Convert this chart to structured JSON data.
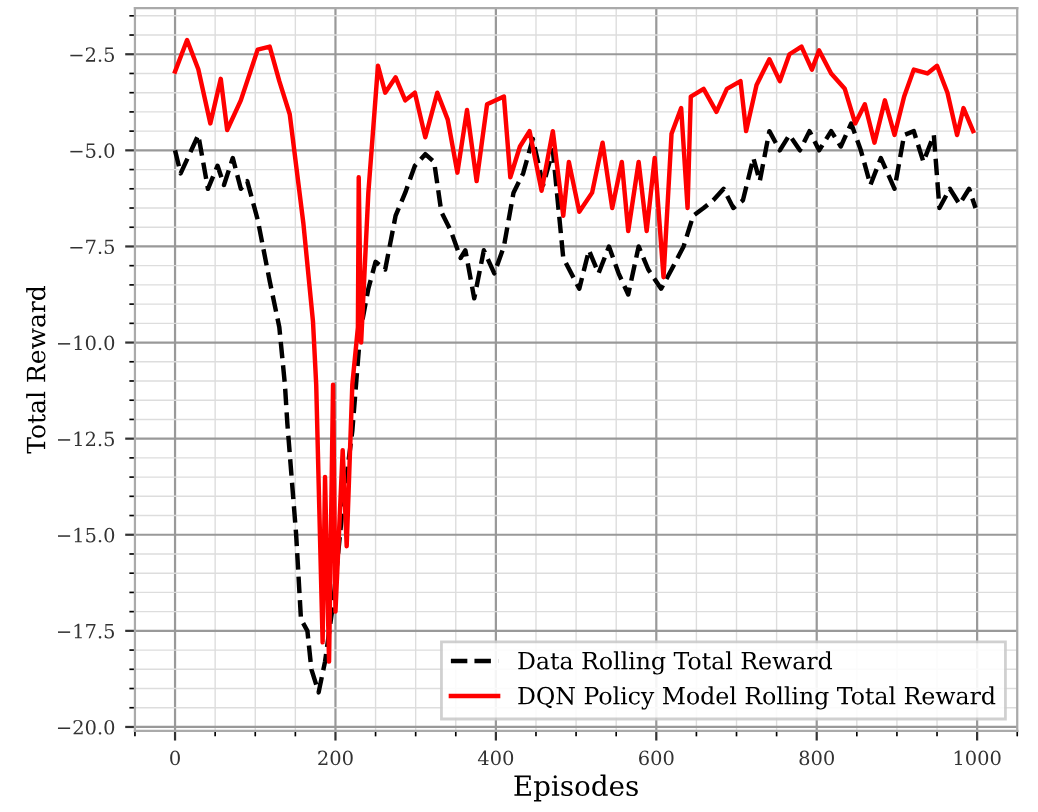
{
  "chart_data": {
    "type": "line",
    "xlabel": "Episodes",
    "ylabel": "Total Reward",
    "xlim": [
      -50,
      1050
    ],
    "ylim": [
      -20.1,
      -1.3
    ],
    "xticks": [
      0,
      200,
      400,
      600,
      800,
      1000
    ],
    "yticks": [
      {
        "value": -20,
        "label": "−20.0"
      },
      {
        "value": -17.5,
        "label": "−17.5"
      },
      {
        "value": -15,
        "label": "−15.0"
      },
      {
        "value": -12.5,
        "label": "−12.5"
      },
      {
        "value": -10,
        "label": "−10.0"
      },
      {
        "value": -7.5,
        "label": "−7.5"
      },
      {
        "value": -5,
        "label": "−5.0"
      },
      {
        "value": -2.5,
        "label": "−2.5"
      }
    ],
    "grid": true,
    "legend": "bottom right",
    "marker": "none",
    "series": [
      {
        "name": "Data Rolling Total Reward",
        "color": "#000000",
        "line_style": "dashed",
        "x": [
          0,
          7,
          29,
          41,
          53,
          61,
          72,
          82,
          90,
          103,
          118,
          130,
          137,
          140,
          151,
          157,
          165,
          170,
          179,
          187,
          197,
          209,
          221,
          231,
          241,
          250,
          262,
          275,
          287,
          299,
          312,
          323,
          332,
          344,
          356,
          362,
          373,
          385,
          398,
          410,
          422,
          434,
          446,
          459,
          471,
          484,
          504,
          516,
          528,
          541,
          553,
          565,
          578,
          590,
          606,
          619,
          634,
          646,
          659,
          671,
          684,
          696,
          708,
          721,
          729,
          741,
          754,
          766,
          779,
          791,
          803,
          818,
          830,
          843,
          855,
          867,
          880,
          897,
          909,
          921,
          933,
          946,
          953,
          966,
          978,
          990,
          998
        ],
        "values": [
          -5.0,
          -5.6,
          -4.6,
          -6.0,
          -5.4,
          -5.9,
          -5.2,
          -6.0,
          -5.8,
          -6.8,
          -8.4,
          -9.6,
          -11.1,
          -12.1,
          -15.0,
          -17.2,
          -17.5,
          -18.5,
          -19.1,
          -18.3,
          -16.8,
          -14.3,
          -12.3,
          -9.7,
          -8.6,
          -7.9,
          -8.1,
          -6.7,
          -6.1,
          -5.4,
          -5.1,
          -5.3,
          -6.6,
          -7.1,
          -7.8,
          -7.6,
          -8.85,
          -7.6,
          -8.2,
          -7.5,
          -6.1,
          -5.6,
          -4.7,
          -5.9,
          -5.0,
          -7.8,
          -8.6,
          -7.6,
          -8.2,
          -7.5,
          -8.2,
          -8.75,
          -7.5,
          -8.1,
          -8.6,
          -8.1,
          -7.5,
          -6.7,
          -6.5,
          -6.3,
          -6.0,
          -6.5,
          -6.3,
          -5.2,
          -5.8,
          -4.5,
          -5.0,
          -4.6,
          -5.0,
          -4.5,
          -5.0,
          -4.5,
          -4.9,
          -4.3,
          -5.0,
          -5.9,
          -5.2,
          -6.0,
          -4.6,
          -4.5,
          -5.3,
          -4.6,
          -6.5,
          -6.0,
          -6.4,
          -6.0,
          -6.5
        ]
      },
      {
        "name": "DQN Policy Model Rolling Total Reward",
        "color": "#ff0000",
        "line_style": "solid",
        "x": [
          0,
          15,
          29,
          44,
          57,
          65,
          82,
          103,
          118,
          130,
          143,
          160,
          172,
          176,
          184,
          187,
          192,
          197,
          200,
          209,
          214,
          221,
          228,
          229,
          232,
          241,
          253,
          262,
          275,
          287,
          299,
          312,
          327,
          340,
          352,
          364,
          376,
          389,
          410,
          418,
          430,
          442,
          457,
          471,
          484,
          491,
          504,
          520,
          533,
          545,
          557,
          565,
          578,
          588,
          598,
          609,
          619,
          631,
          639,
          643,
          659,
          675,
          688,
          705,
          712,
          725,
          741,
          754,
          766,
          781,
          794,
          803,
          818,
          835,
          848,
          860,
          872,
          885,
          897,
          909,
          921,
          938,
          950,
          963,
          975,
          983,
          995
        ],
        "values": [
          -2.95,
          -2.13,
          -2.89,
          -4.3,
          -3.14,
          -4.47,
          -3.7,
          -2.38,
          -2.3,
          -3.2,
          -4.06,
          -6.9,
          -9.46,
          -11.1,
          -17.8,
          -13.5,
          -18.3,
          -11.1,
          -17.0,
          -12.8,
          -15.3,
          -11.1,
          -9.6,
          -5.7,
          -10.0,
          -6.1,
          -2.8,
          -3.5,
          -3.1,
          -3.7,
          -3.5,
          -4.66,
          -3.5,
          -4.2,
          -5.58,
          -3.95,
          -5.8,
          -3.8,
          -3.6,
          -5.7,
          -4.9,
          -4.5,
          -6.05,
          -4.5,
          -6.7,
          -5.3,
          -6.6,
          -6.1,
          -4.8,
          -6.5,
          -5.3,
          -7.1,
          -5.3,
          -7.1,
          -5.2,
          -8.3,
          -4.57,
          -3.9,
          -6.5,
          -3.6,
          -3.4,
          -4.0,
          -3.4,
          -3.2,
          -4.5,
          -3.3,
          -2.63,
          -3.2,
          -2.5,
          -2.3,
          -2.9,
          -2.4,
          -3.0,
          -3.4,
          -4.3,
          -3.8,
          -4.8,
          -3.7,
          -4.6,
          -3.6,
          -2.9,
          -3.0,
          -2.8,
          -3.5,
          -4.6,
          -3.9,
          -4.5
        ]
      }
    ]
  }
}
